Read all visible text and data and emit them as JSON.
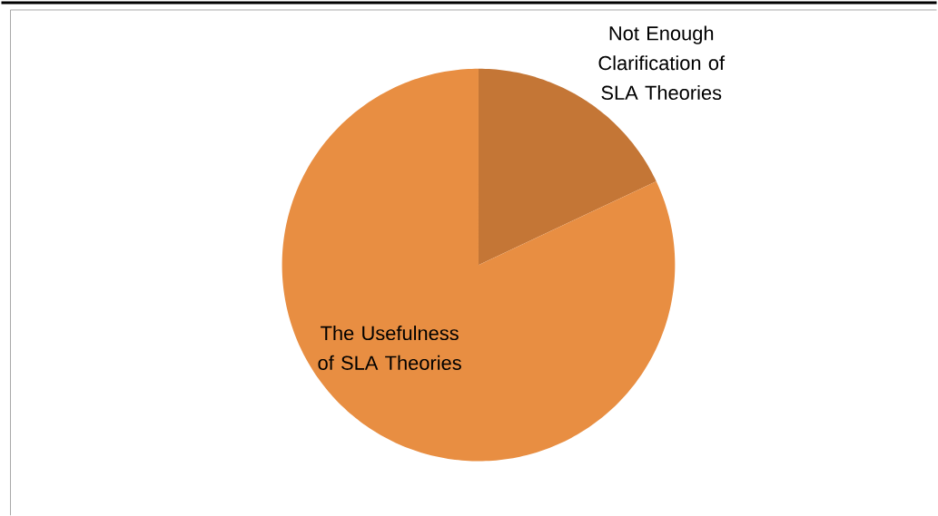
{
  "chart_data": {
    "type": "pie",
    "categories": [
      "Not Enough Clarification of SLA Theories",
      "The Usefulness of SLA Theories"
    ],
    "values": [
      18,
      82
    ],
    "colors": [
      "#c47636",
      "#e88e42"
    ]
  }
}
